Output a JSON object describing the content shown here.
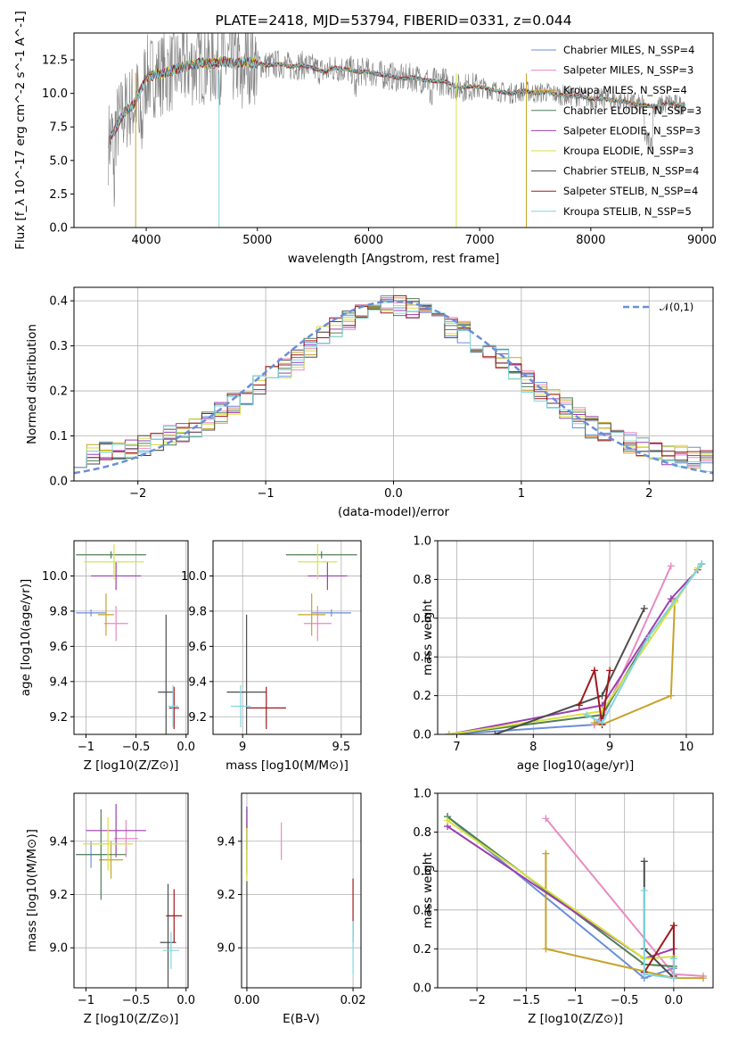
{
  "colors": [
    "#6b8fd8",
    "#e88ac4",
    "#c7a32c",
    "#4f7f55",
    "#9b3fb0",
    "#d6e23e",
    "#4d4d4d",
    "#a0181c",
    "#7fd6e0"
  ],
  "chart_data": [
    {
      "id": "spectrum",
      "type": "line",
      "title": "PLATE=2418, MJD=53794, FIBERID=0331, z=0.044",
      "xlabel": "wavelength [Angstrom, rest frame]",
      "ylabel": "Flux [f_λ 10^-17 erg cm^-2 s^-1 A^-1]",
      "xlim": [
        3350,
        9100
      ],
      "ylim": [
        0,
        14.5
      ],
      "xticks": [
        4000,
        5000,
        6000,
        7000,
        8000,
        9000
      ],
      "yticks": [
        0.0,
        2.5,
        5.0,
        7.5,
        10.0,
        12.5
      ],
      "legend_position": "upper right",
      "series": [
        {
          "name": "Chabrier MILES, N_SSP=4"
        },
        {
          "name": "Salpeter MILES, N_SSP=3"
        },
        {
          "name": "Kroupa MILES, N_SSP=4"
        },
        {
          "name": "Chabrier ELODIE, N_SSP=3"
        },
        {
          "name": "Salpeter ELODIE, N_SSP=3"
        },
        {
          "name": "Kroupa ELODIE, N_SSP=3"
        },
        {
          "name": "Chabrier STELIB, N_SSP=4"
        },
        {
          "name": "Salpeter STELIB, N_SSP=4"
        },
        {
          "name": "Kroupa STELIB, N_SSP=5"
        }
      ],
      "data_curve": {
        "x": [
          3650,
          3700,
          3800,
          3900,
          4000,
          4100,
          4200,
          4300,
          4400,
          4500,
          4600,
          4700,
          4800,
          4900,
          5000,
          5100,
          5200,
          5300,
          5400,
          5500,
          5600,
          5700,
          5800,
          5900,
          6000,
          6100,
          6200,
          6300,
          6400,
          6500,
          6600,
          6700,
          6800,
          6900,
          7000,
          7100,
          7200,
          7300,
          7400,
          7500,
          7600,
          7700,
          7800,
          7900,
          8000,
          8100,
          8200,
          8300,
          8400,
          8500,
          8600,
          8700,
          8800,
          8850
        ],
        "y": [
          6.2,
          7.0,
          8.6,
          9.3,
          11.2,
          11.4,
          11.6,
          11.9,
          12.1,
          12.3,
          12.2,
          12.4,
          12.2,
          12.4,
          12.2,
          12.1,
          12.2,
          12.0,
          12.1,
          11.9,
          11.6,
          11.9,
          11.8,
          11.6,
          11.6,
          11.4,
          11.3,
          11.1,
          11.2,
          11.0,
          10.9,
          10.9,
          10.4,
          10.5,
          10.5,
          10.3,
          10.1,
          10.0,
          10.2,
          10.0,
          10.1,
          9.9,
          9.8,
          9.8,
          9.6,
          9.6,
          9.5,
          9.4,
          9.2,
          9.1,
          9.0,
          9.3,
          9.1,
          9.3
        ]
      },
      "absorption_dips": [
        {
          "x": 3905,
          "y": 0.0
        },
        {
          "x": 4655,
          "y": 0.0
        },
        {
          "x": 6790,
          "y": 0.0
        },
        {
          "x": 7420,
          "y": 0.0
        }
      ]
    },
    {
      "id": "residuals",
      "type": "bar",
      "xlabel": "(data-model)/error",
      "ylabel": "Normed distribution",
      "xlim": [
        -2.5,
        2.5
      ],
      "ylim": [
        0,
        0.43
      ],
      "xticks": [
        -2,
        -1,
        0,
        1,
        2
      ],
      "yticks": [
        0.0,
        0.1,
        0.2,
        0.3,
        0.4
      ],
      "legend": "𝒩(0,1)",
      "legend_position": "upper right",
      "bin_edges": [
        -2.5,
        -2.4,
        -2.3,
        -2.2,
        -2.1,
        -2.0,
        -1.9,
        -1.8,
        -1.7,
        -1.6,
        -1.5,
        -1.4,
        -1.3,
        -1.2,
        -1.1,
        -1.0,
        -0.9,
        -0.8,
        -0.7,
        -0.6,
        -0.5,
        -0.4,
        -0.3,
        -0.2,
        -0.1,
        0.0,
        0.1,
        0.2,
        0.3,
        0.4,
        0.5,
        0.6,
        0.7,
        0.8,
        0.9,
        1.0,
        1.1,
        1.2,
        1.3,
        1.4,
        1.5,
        1.6,
        1.7,
        1.8,
        1.9,
        2.0,
        2.1,
        2.2,
        2.3,
        2.4,
        2.5
      ],
      "histogram_mean": [
        0.055,
        0.06,
        0.065,
        0.07,
        0.075,
        0.08,
        0.09,
        0.1,
        0.11,
        0.12,
        0.135,
        0.15,
        0.17,
        0.19,
        0.21,
        0.23,
        0.25,
        0.27,
        0.3,
        0.32,
        0.34,
        0.36,
        0.37,
        0.38,
        0.39,
        0.39,
        0.385,
        0.37,
        0.355,
        0.34,
        0.33,
        0.31,
        0.29,
        0.27,
        0.25,
        0.22,
        0.2,
        0.18,
        0.16,
        0.14,
        0.12,
        0.11,
        0.095,
        0.085,
        0.075,
        0.07,
        0.06,
        0.055,
        0.05,
        0.045
      ],
      "normal_curve": "N(0,1)"
    },
    {
      "id": "z-age",
      "type": "scatter",
      "xlabel": "Z [log10(Z/Z⊙)]",
      "ylabel": "age  [log10(age/yr)]",
      "xlim": [
        -1.12,
        0.02
      ],
      "ylim": [
        9.1,
        10.2
      ],
      "xticks": [
        -1.0,
        -0.5,
        0.0
      ],
      "yticks": [
        9.2,
        9.4,
        9.6,
        9.8,
        10.0
      ],
      "points": [
        {
          "series": 0,
          "x": -0.95,
          "y": 9.79,
          "xe": 0.15,
          "ye": 0.02
        },
        {
          "series": 1,
          "x": -0.7,
          "y": 9.73,
          "xe": 0.12,
          "ye": 0.1
        },
        {
          "series": 2,
          "x": -0.8,
          "y": 9.78,
          "xe": 0.08,
          "ye": 0.12
        },
        {
          "series": 3,
          "x": -0.75,
          "y": 10.12,
          "xe": 0.35,
          "ye": 0.02
        },
        {
          "series": 4,
          "x": -0.7,
          "y": 10.0,
          "xe": 0.25,
          "ye": 0.08
        },
        {
          "series": 5,
          "x": -0.72,
          "y": 10.08,
          "xe": 0.3,
          "ye": 0.1
        },
        {
          "series": 6,
          "x": -0.2,
          "y": 9.34,
          "xe": 0.08,
          "ye": 0.44
        },
        {
          "series": 7,
          "x": -0.12,
          "y": 9.25,
          "xe": 0.05,
          "ye": 0.12
        },
        {
          "series": 8,
          "x": -0.13,
          "y": 9.26,
          "xe": 0.05,
          "ye": 0.12
        }
      ]
    },
    {
      "id": "mass-age",
      "type": "scatter",
      "xlabel": "mass [log10(M/M⊙)]",
      "ylabel": "",
      "xlim": [
        8.85,
        9.6
      ],
      "ylim": [
        9.1,
        10.2
      ],
      "xticks": [
        9.0,
        9.5
      ],
      "yticks": [
        9.2,
        9.4,
        9.6,
        9.8,
        10.0
      ],
      "points": [
        {
          "series": 0,
          "x": 9.45,
          "y": 9.79,
          "xe": 0.1,
          "ye": 0.02
        },
        {
          "series": 1,
          "x": 9.38,
          "y": 9.73,
          "xe": 0.07,
          "ye": 0.1
        },
        {
          "series": 2,
          "x": 9.35,
          "y": 9.78,
          "xe": 0.07,
          "ye": 0.12
        },
        {
          "series": 3,
          "x": 9.4,
          "y": 10.12,
          "xe": 0.18,
          "ye": 0.02
        },
        {
          "series": 4,
          "x": 9.43,
          "y": 10.0,
          "xe": 0.1,
          "ye": 0.08
        },
        {
          "series": 5,
          "x": 9.38,
          "y": 10.08,
          "xe": 0.1,
          "ye": 0.1
        },
        {
          "series": 6,
          "x": 9.02,
          "y": 9.34,
          "xe": 0.1,
          "ye": 0.44
        },
        {
          "series": 7,
          "x": 9.12,
          "y": 9.25,
          "xe": 0.1,
          "ye": 0.12
        },
        {
          "series": 8,
          "x": 8.99,
          "y": 9.26,
          "xe": 0.05,
          "ye": 0.12
        }
      ]
    },
    {
      "id": "age-weight",
      "type": "line",
      "xlabel": "age  [log10(age/yr)]",
      "ylabel": "mass weight",
      "xlim": [
        6.75,
        10.35
      ],
      "ylim": [
        0,
        1.0
      ],
      "xticks": [
        7,
        8,
        9,
        10
      ],
      "yticks": [
        0.0,
        0.2,
        0.4,
        0.6,
        0.8,
        1.0
      ],
      "series": [
        {
          "x": [
            6.9,
            8.8,
            8.9,
            9.5,
            10.2
          ],
          "y": [
            0.0,
            0.05,
            0.1,
            0.5,
            0.88
          ]
        },
        {
          "x": [
            8.8,
            8.9,
            9.8
          ],
          "y": [
            0.05,
            0.08,
            0.87
          ]
        },
        {
          "x": [
            8.8,
            8.9,
            9.8,
            9.85
          ],
          "y": [
            0.06,
            0.05,
            0.2,
            0.69
          ]
        },
        {
          "x": [
            6.9,
            8.9,
            9.5,
            10.2
          ],
          "y": [
            0.0,
            0.1,
            0.5,
            0.88
          ]
        },
        {
          "x": [
            6.9,
            8.9,
            9.8,
            10.15
          ],
          "y": [
            0.0,
            0.15,
            0.7,
            0.85
          ]
        },
        {
          "x": [
            6.9,
            8.9,
            9.85,
            10.15
          ],
          "y": [
            0.0,
            0.12,
            0.68,
            0.86
          ]
        },
        {
          "x": [
            7.5,
            8.9,
            9.45
          ],
          "y": [
            0.0,
            0.2,
            0.65
          ]
        },
        {
          "x": [
            8.6,
            8.8,
            8.9,
            9.0
          ],
          "y": [
            0.15,
            0.33,
            0.05,
            0.33
          ]
        },
        {
          "x": [
            8.7,
            8.9,
            9.5,
            10.2
          ],
          "y": [
            0.1,
            0.06,
            0.5,
            0.88
          ]
        }
      ]
    },
    {
      "id": "z-mass",
      "type": "scatter",
      "xlabel": "Z [log10(Z/Z⊙)]",
      "ylabel": "mass [log10(M/M⊙)]",
      "xlim": [
        -1.12,
        0.02
      ],
      "ylim": [
        8.85,
        9.58
      ],
      "xticks": [
        -1.0,
        -0.5,
        0.0
      ],
      "yticks": [
        9.0,
        9.2,
        9.4
      ],
      "points": [
        {
          "series": 0,
          "x": -0.95,
          "y": 9.35,
          "xe": 0.15,
          "ye": 0.05
        },
        {
          "series": 1,
          "x": -0.6,
          "y": 9.41,
          "xe": 0.12,
          "ye": 0.07
        },
        {
          "series": 2,
          "x": -0.75,
          "y": 9.33,
          "xe": 0.12,
          "ye": 0.07
        },
        {
          "series": 3,
          "x": -0.85,
          "y": 9.35,
          "xe": 0.25,
          "ye": 0.17
        },
        {
          "series": 4,
          "x": -0.7,
          "y": 9.44,
          "xe": 0.3,
          "ye": 0.1
        },
        {
          "series": 5,
          "x": -0.78,
          "y": 9.39,
          "xe": 0.25,
          "ye": 0.1
        },
        {
          "series": 6,
          "x": -0.18,
          "y": 9.02,
          "xe": 0.08,
          "ye": 0.22
        },
        {
          "series": 7,
          "x": -0.12,
          "y": 9.12,
          "xe": 0.08,
          "ye": 0.1
        },
        {
          "series": 8,
          "x": -0.15,
          "y": 8.99,
          "xe": 0.08,
          "ye": 0.07
        }
      ]
    },
    {
      "id": "ebv-mass",
      "type": "scatter",
      "xlabel": "E(B-V)",
      "ylabel": "",
      "xlim": [
        -0.001,
        0.0215
      ],
      "ylim": [
        8.85,
        9.58
      ],
      "xticks": [
        0.0,
        0.02
      ],
      "yticks": [
        9.0,
        9.2,
        9.4
      ],
      "points": [
        {
          "series": 0,
          "x": 0.0,
          "y": 9.45,
          "xe": 0,
          "ye": 0.08
        },
        {
          "series": 1,
          "x": 0.0065,
          "y": 9.4,
          "xe": 0,
          "ye": 0.07
        },
        {
          "series": 2,
          "x": 0.0,
          "y": 9.37,
          "xe": 0,
          "ye": 0.1
        },
        {
          "series": 3,
          "x": 0.0,
          "y": 9.4,
          "xe": 0,
          "ye": 0.12
        },
        {
          "series": 4,
          "x": 0.0,
          "y": 9.45,
          "xe": 0,
          "ye": 0.08
        },
        {
          "series": 5,
          "x": 0.0,
          "y": 9.35,
          "xe": 0,
          "ye": 0.1
        },
        {
          "series": 6,
          "x": 0.0,
          "y": 9.05,
          "xe": 0,
          "ye": 0.2
        },
        {
          "series": 7,
          "x": 0.02,
          "y": 9.14,
          "xe": 0,
          "ye": 0.12
        },
        {
          "series": 8,
          "x": 0.02,
          "y": 9.0,
          "xe": 0,
          "ye": 0.1
        }
      ]
    },
    {
      "id": "z-weight",
      "type": "line",
      "xlabel": "Z [log10(Z/Z⊙)]",
      "ylabel": "mass weight",
      "xlim": [
        -2.4,
        0.4
      ],
      "ylim": [
        0,
        1.0
      ],
      "xticks": [
        -2.0,
        -1.5,
        -1.0,
        -0.5,
        0.0
      ],
      "yticks": [
        0.0,
        0.2,
        0.4,
        0.6,
        0.8,
        1.0
      ],
      "series": [
        {
          "x": [
            -2.3,
            -0.3,
            0.0
          ],
          "y": [
            0.88,
            0.05,
            0.1
          ]
        },
        {
          "x": [
            -1.3,
            0.0,
            0.3
          ],
          "y": [
            0.87,
            0.07,
            0.06
          ]
        },
        {
          "x": [
            -1.3,
            -1.3,
            0.0,
            0.3
          ],
          "y": [
            0.69,
            0.2,
            0.05,
            0.05
          ]
        },
        {
          "x": [
            -2.3,
            -0.3,
            0.0
          ],
          "y": [
            0.88,
            0.12,
            0.11
          ]
        },
        {
          "x": [
            -2.3,
            -0.3,
            0.0
          ],
          "y": [
            0.83,
            0.15,
            0.2
          ]
        },
        {
          "x": [
            -2.3,
            -0.3,
            0.0
          ],
          "y": [
            0.86,
            0.15,
            0.16
          ]
        },
        {
          "x": [
            -0.3,
            -0.3,
            0.0
          ],
          "y": [
            0.65,
            0.2,
            0.05
          ]
        },
        {
          "x": [
            -0.3,
            0.0,
            0.0
          ],
          "y": [
            0.08,
            0.32,
            0.06
          ]
        },
        {
          "x": [
            -0.3,
            -0.3,
            0.0,
            0.0
          ],
          "y": [
            0.5,
            0.07,
            0.05,
            0.15
          ]
        }
      ]
    }
  ]
}
